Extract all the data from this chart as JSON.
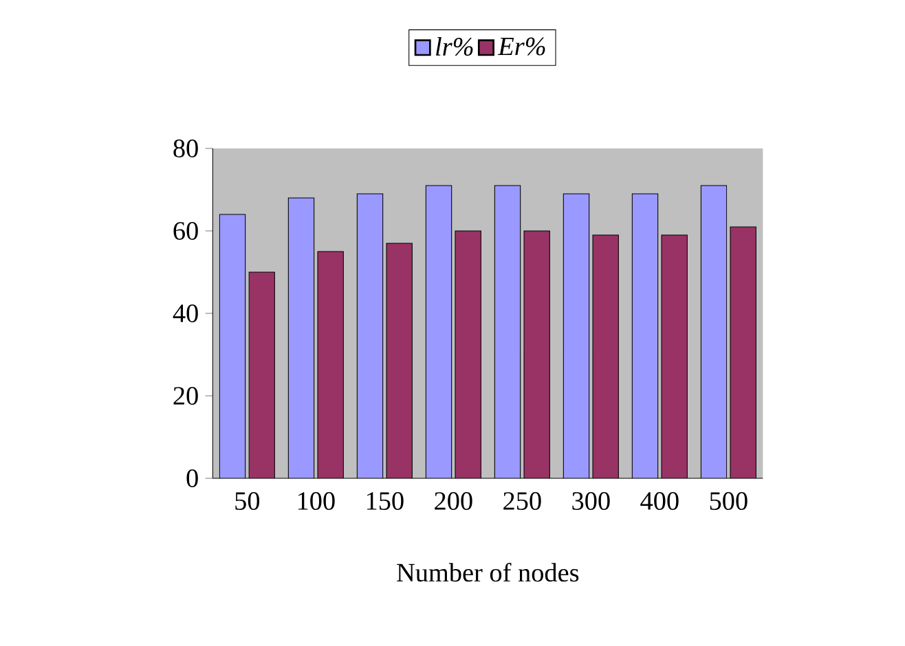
{
  "chart_data": {
    "type": "bar",
    "xlabel": "Number of nodes",
    "categories": [
      "50",
      "100",
      "150",
      "200",
      "250",
      "300",
      "400",
      "500"
    ],
    "series": [
      {
        "name": "lr%",
        "color": "#9999ff",
        "values": [
          64,
          68,
          69,
          71,
          71,
          69,
          69,
          71
        ]
      },
      {
        "name": "Er%",
        "color": "#993366",
        "values": [
          50,
          55,
          57,
          60,
          60,
          59,
          59,
          61
        ]
      }
    ],
    "ylim": [
      0,
      80
    ],
    "yticks": [
      0,
      20,
      40,
      60,
      80
    ],
    "legend": "top",
    "grid": false
  }
}
